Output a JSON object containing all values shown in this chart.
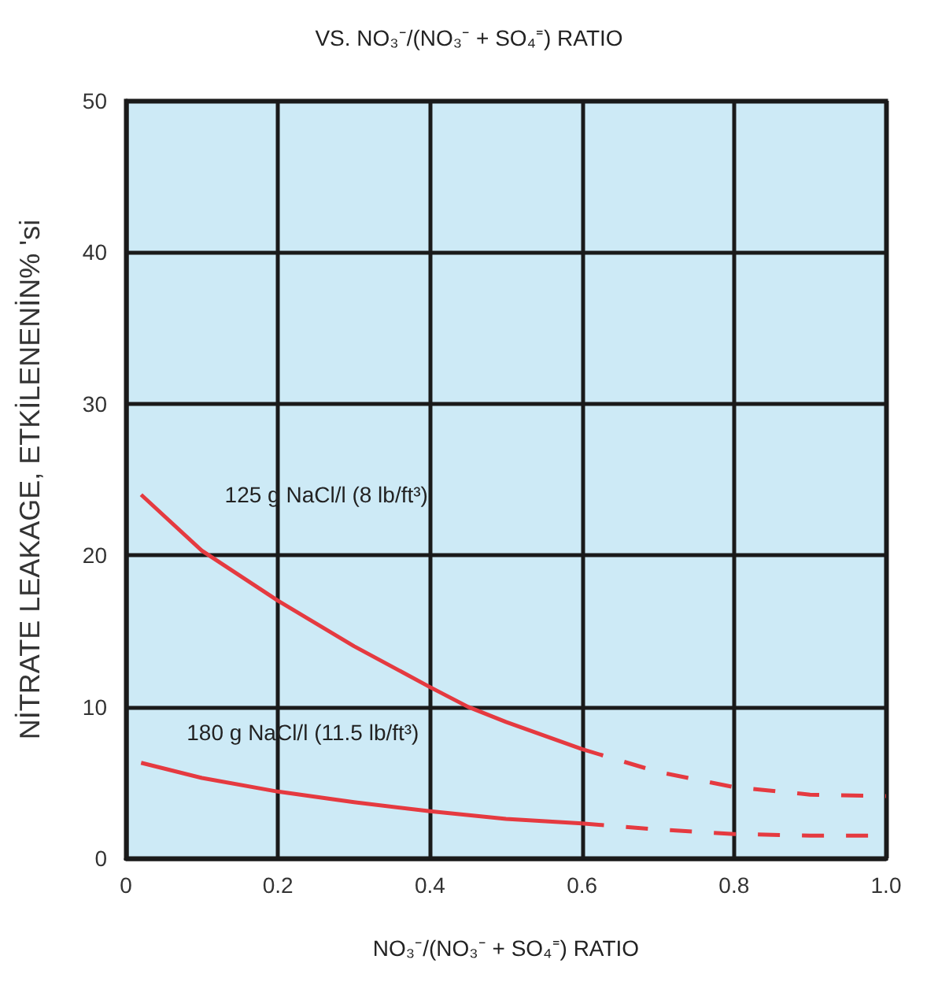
{
  "chart_data": {
    "type": "line",
    "title": "VS. NO₃⁻/(NO₃⁻ + SO₄⁼) RATIO",
    "xlabel": "NO₃⁻/(NO₃⁻ + SO₄⁼) RATIO",
    "ylabel": "NİTRATE LEAKAGE, ETKİLENENİN% 'si",
    "xlim": [
      0,
      1.0
    ],
    "xticks": [
      0,
      {
        "value": 0.2,
        "label": "0.2"
      },
      {
        "value": 0.4,
        "label": "0.4"
      },
      {
        "value": 0.6,
        "label": "0.6"
      },
      {
        "value": 0.8,
        "label": "0.8"
      },
      {
        "value": 1.0,
        "label": "1.0"
      }
    ],
    "ylim": [
      0,
      50
    ],
    "yticks": [
      0,
      10,
      20,
      30,
      40,
      50
    ],
    "grid": true,
    "legend": false,
    "marker": "none",
    "series": [
      {
        "name": "125 g NaCl/l (8 lb/ft³)",
        "color": "#e53a40",
        "line_style": "solid",
        "x": [
          0.02,
          0.1,
          0.2,
          0.3,
          0.4,
          0.45,
          0.5,
          0.6
        ],
        "values": [
          24,
          20.3,
          17,
          14,
          11.3,
          10,
          9,
          7.2
        ]
      },
      {
        "color": "#e53a40",
        "line_style": "dashed",
        "x": [
          0.6,
          0.7,
          0.8,
          0.9,
          1.0
        ],
        "values": [
          7.2,
          5.7,
          4.7,
          4.2,
          4.1
        ]
      },
      {
        "name": "180 g NaCl/l (11.5 lb/ft³)",
        "color": "#e53a40",
        "line_style": "solid",
        "x": [
          0.02,
          0.1,
          0.2,
          0.3,
          0.4,
          0.5,
          0.6
        ],
        "values": [
          6.3,
          5.3,
          4.4,
          3.7,
          3.1,
          2.6,
          2.3
        ]
      },
      {
        "color": "#e53a40",
        "line_style": "dashed",
        "x": [
          0.6,
          0.7,
          0.8,
          0.9,
          1.0
        ],
        "values": [
          2.3,
          1.9,
          1.6,
          1.5,
          1.5
        ]
      }
    ]
  }
}
